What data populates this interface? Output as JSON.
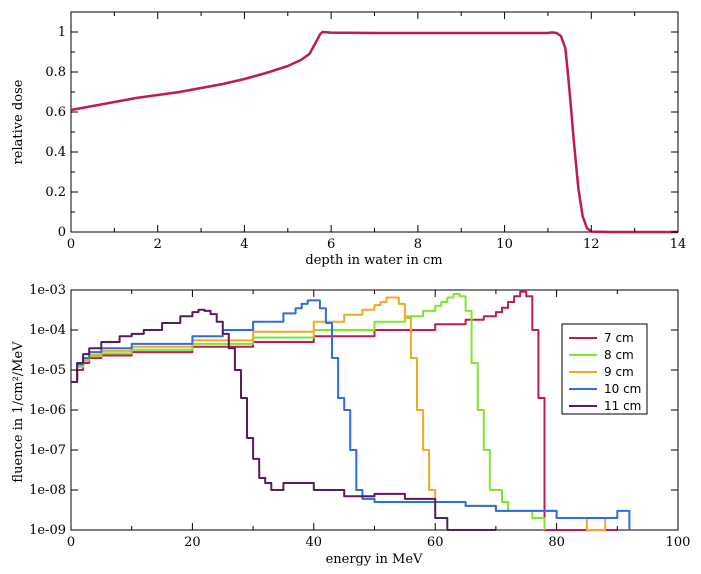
{
  "chart_data": [
    {
      "type": "line",
      "title": "",
      "xlabel": "depth in water in cm",
      "ylabel": "relative dose",
      "xlim": [
        0,
        14
      ],
      "ylim": [
        0,
        1.1
      ],
      "x_ticks": [
        0,
        2,
        4,
        6,
        8,
        10,
        12,
        14
      ],
      "x_tick_labels": [
        "0",
        "2",
        "4",
        "6",
        "8",
        "10",
        "12",
        "14"
      ],
      "y_ticks": [
        0,
        0.2,
        0.4,
        0.6,
        0.8,
        1
      ],
      "y_tick_labels": [
        "0",
        "0.2",
        "0.4",
        "0.6",
        "0.8",
        "1"
      ],
      "grid": false,
      "series": [
        {
          "color": "#c0185a",
          "x": [
            0,
            0.5,
            1,
            1.5,
            2,
            2.5,
            3,
            3.5,
            4,
            4.5,
            5,
            5.3,
            5.5,
            5.6,
            5.7,
            5.75,
            5.8,
            6,
            7,
            8,
            9,
            10,
            10.5,
            11,
            11.1,
            11.2,
            11.3,
            11.4,
            11.45,
            11.5,
            11.6,
            11.7,
            11.8,
            11.9,
            12,
            12.5,
            14
          ],
          "y": [
            0.61,
            0.63,
            0.65,
            0.67,
            0.685,
            0.7,
            0.72,
            0.74,
            0.765,
            0.795,
            0.83,
            0.86,
            0.89,
            0.93,
            0.97,
            0.99,
            1.0,
            0.997,
            0.995,
            0.995,
            0.995,
            0.995,
            0.995,
            0.995,
            0.998,
            0.995,
            0.98,
            0.92,
            0.82,
            0.7,
            0.45,
            0.22,
            0.08,
            0.02,
            0.002,
            0,
            0
          ]
        }
      ]
    },
    {
      "type": "line",
      "title": "",
      "xlabel": "energy in MeV",
      "ylabel": "fluence in 1/cm²/MeV",
      "xlim": [
        0,
        100
      ],
      "ylim": [
        1e-09,
        0.001
      ],
      "log_y": true,
      "x_ticks": [
        0,
        20,
        40,
        60,
        80,
        100
      ],
      "x_tick_labels": [
        "0",
        "20",
        "40",
        "60",
        "80",
        "100"
      ],
      "y_ticks": [
        1e-09,
        1e-08,
        1e-07,
        1e-06,
        1e-05,
        0.0001,
        0.001
      ],
      "y_tick_labels": [
        "1e-09",
        "1e-08",
        "1e-07",
        "1e-06",
        "1e-05",
        "1e-04",
        "1e-03"
      ],
      "grid": false,
      "legend_position": "right",
      "series": [
        {
          "name": "7 cm",
          "color": "#c0185a",
          "x": [
            0,
            1,
            2,
            3,
            5,
            10,
            20,
            30,
            40,
            50,
            60,
            65,
            68,
            70,
            71,
            72,
            73,
            74,
            75,
            76,
            77,
            78,
            79,
            80,
            85,
            90
          ],
          "y": [
            5e-06,
            1e-05,
            1.5e-05,
            2e-05,
            2.3e-05,
            2.8e-05,
            3.8e-05,
            5e-05,
            7e-05,
            0.0001,
            0.00014,
            0.00018,
            0.00022,
            0.00028,
            0.00036,
            0.0005,
            0.0007,
            0.0009,
            0.0007,
            0.0001,
            2e-06,
            1e-09,
            1e-09,
            1e-09,
            1e-09,
            1e-09
          ]
        },
        {
          "name": "8 cm",
          "color": "#7be82a",
          "x": [
            0,
            1,
            2,
            3,
            5,
            10,
            20,
            30,
            40,
            50,
            55,
            58,
            60,
            61,
            62,
            63,
            64,
            65,
            66,
            67,
            68,
            69,
            70,
            71,
            72,
            74,
            76,
            78
          ],
          "y": [
            5e-06,
            1.2e-05,
            1.7e-05,
            2.2e-05,
            2.6e-05,
            3.2e-05,
            4.5e-05,
            6.5e-05,
            0.0001,
            0.00016,
            0.00022,
            0.0003,
            0.0004,
            0.0005,
            0.00065,
            0.0008,
            0.0007,
            0.0003,
            1.5e-05,
            1e-06,
            1e-07,
            1e-08,
            1e-08,
            5e-09,
            3e-09,
            3e-09,
            2e-09,
            1e-09
          ]
        },
        {
          "name": "9 cm",
          "color": "#f5a623",
          "x": [
            0,
            1,
            2,
            3,
            5,
            10,
            20,
            30,
            40,
            45,
            48,
            50,
            51,
            52,
            53,
            54,
            55,
            56,
            57,
            58,
            59,
            60,
            62,
            65,
            70,
            80,
            85,
            88
          ],
          "y": [
            5e-06,
            1.3e-05,
            1.8e-05,
            2.4e-05,
            3e-05,
            3.8e-05,
            5.5e-05,
            9e-05,
            0.00016,
            0.00024,
            0.00032,
            0.00042,
            0.0005,
            0.00065,
            0.00065,
            0.00045,
            0.0002,
            2e-05,
            1e-06,
            1e-07,
            1e-08,
            5e-09,
            5e-09,
            4e-09,
            3e-09,
            2e-09,
            1e-09,
            2e-09
          ]
        },
        {
          "name": "10 cm",
          "color": "#2c6fe0",
          "x": [
            0,
            1,
            2,
            3,
            5,
            10,
            20,
            25,
            30,
            35,
            37,
            38,
            39,
            40,
            41,
            42,
            43,
            44,
            45,
            46,
            47,
            48,
            50,
            55,
            60,
            65,
            70,
            75,
            80,
            85,
            90,
            92
          ],
          "y": [
            5e-06,
            1.4e-05,
            2e-05,
            2.8e-05,
            3.5e-05,
            4.5e-05,
            7e-05,
            0.0001,
            0.00016,
            0.00026,
            0.00035,
            0.00045,
            0.00055,
            0.00055,
            0.00035,
            0.00015,
            2e-05,
            2e-06,
            1e-06,
            1e-07,
            1e-08,
            6e-09,
            5e-09,
            5e-09,
            5e-09,
            4e-09,
            3e-09,
            3e-09,
            2e-09,
            2e-09,
            3e-09,
            1e-09
          ]
        },
        {
          "name": "11 cm",
          "color": "#5a1a5e",
          "x": [
            0,
            1,
            2,
            3,
            5,
            8,
            10,
            12,
            15,
            18,
            20,
            21,
            22,
            23,
            24,
            25,
            26,
            27,
            28,
            29,
            30,
            31,
            32,
            33,
            35,
            40,
            45,
            50,
            55,
            60,
            62,
            65,
            70
          ],
          "y": [
            5e-06,
            1.5e-05,
            2.5e-05,
            3.5e-05,
            5e-05,
            7e-05,
            8e-05,
            0.0001,
            0.00015,
            0.00022,
            0.00028,
            0.00032,
            0.0003,
            0.00025,
            0.00016,
            8e-05,
            3.5e-05,
            1e-05,
            2e-06,
            2e-07,
            6e-08,
            2e-08,
            1.5e-08,
            1e-08,
            1.5e-08,
            1e-08,
            7e-09,
            8e-09,
            6e-09,
            2e-09,
            1e-09,
            1e-09,
            1e-09
          ]
        }
      ]
    }
  ]
}
